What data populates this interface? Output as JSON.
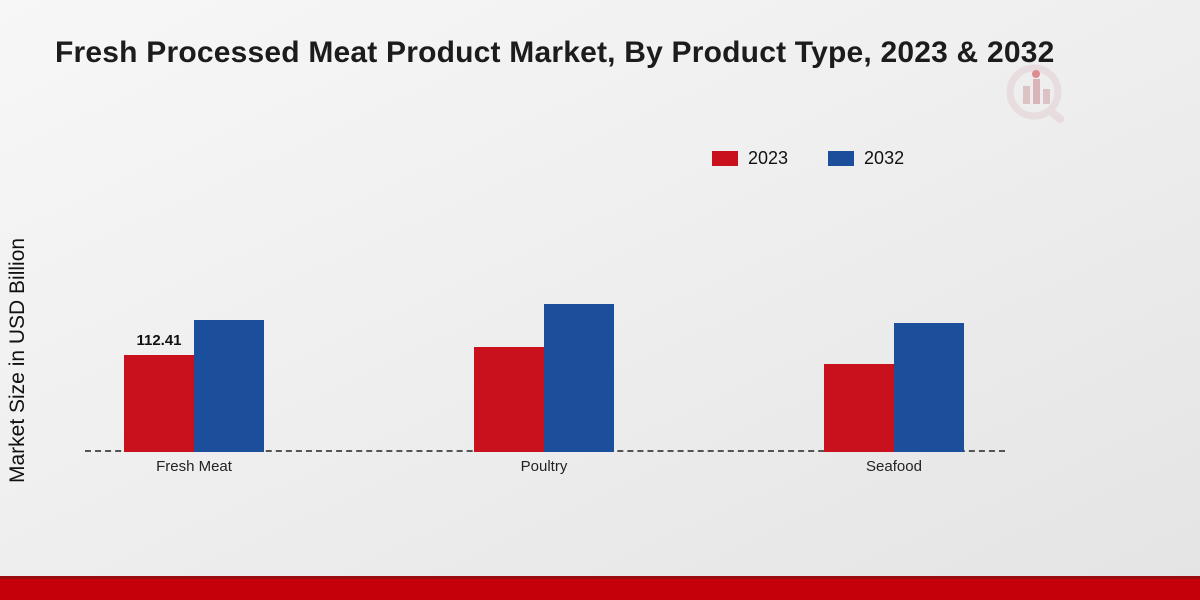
{
  "title": "Fresh Processed Meat Product Market, By Product Type, 2023 & 2032",
  "y_axis_label": "Market Size in USD Billion",
  "legend": {
    "items": [
      {
        "label": "2023",
        "color": "#c9111d"
      },
      {
        "label": "2032",
        "color": "#1b4f9c"
      }
    ]
  },
  "chart_data": {
    "type": "bar",
    "categories": [
      "Fresh Meat",
      "Poultry",
      "Seafood"
    ],
    "series": [
      {
        "name": "2023",
        "color": "#c9111d",
        "values": [
          112.41,
          121.8,
          101.9
        ]
      },
      {
        "name": "2032",
        "color": "#1b4f9c",
        "values": [
          152.9,
          171.6,
          149.5
        ]
      }
    ],
    "title": "Fresh Processed Meat Product Market, By Product Type, 2023 & 2032",
    "xlabel": "",
    "ylabel": "Market Size in USD Billion",
    "ylim": [
      0,
      200
    ],
    "grid": false,
    "legend_position": "top-right",
    "baseline_style": "dashed",
    "annotations": [
      {
        "series": "2023",
        "category": "Fresh Meat",
        "text": "112.41"
      }
    ]
  },
  "footer": {
    "bar_color": "#c5000a"
  }
}
